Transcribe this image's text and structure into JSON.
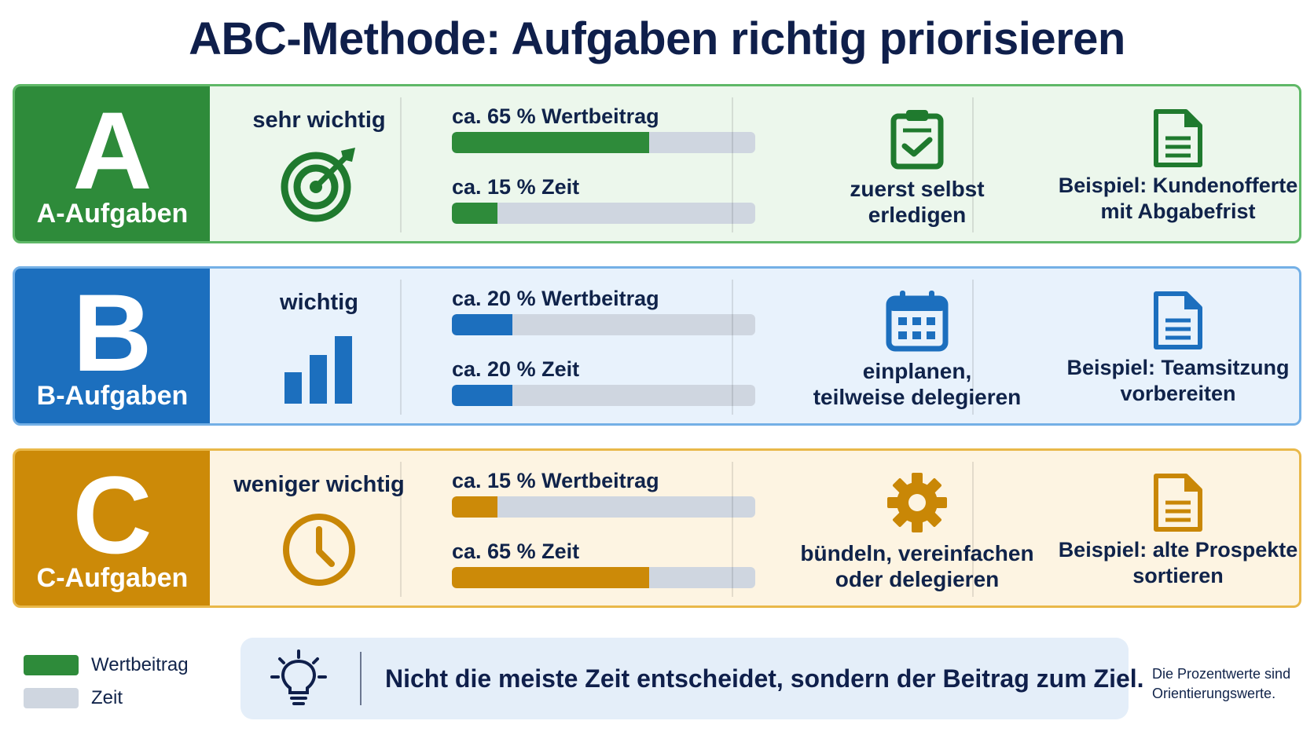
{
  "title": "ABC-Methode: Aufgaben richtig priorisieren",
  "colors": {
    "a_main": "#2e8b3a",
    "a_bg": "#ecf7ec",
    "a_border": "#5fb867",
    "b_main": "#1c6fbe",
    "b_bg": "#e8f2fc",
    "b_border": "#74b0e6",
    "c_main": "#cc8a08",
    "c_bg": "#fdf4e2",
    "c_border": "#e9b849",
    "track": "#cfd6e0",
    "text_dark": "#10234a"
  },
  "rows": [
    {
      "letter": "A",
      "label": "A-Aufgaben",
      "importance": "sehr wichtig",
      "importance_icon": "target-icon",
      "value_label": "ca. 65 % Wertbeitrag",
      "value_pct": 65,
      "time_label": "ca. 15 % Zeit",
      "time_pct": 15,
      "action_icon": "clipboard-check-icon",
      "action_line1": "zuerst selbst",
      "action_line2": "erledigen",
      "example_icon": "document-icon",
      "example_line1": "Beispiel: Kundenofferte",
      "example_line2": "mit Abgabefrist"
    },
    {
      "letter": "B",
      "label": "B-Aufgaben",
      "importance": "wichtig",
      "importance_icon": "bar-chart-icon",
      "value_label": "ca. 20 % Wertbeitrag",
      "value_pct": 20,
      "time_label": "ca. 20 % Zeit",
      "time_pct": 20,
      "action_icon": "calendar-icon",
      "action_line1": "einplanen,",
      "action_line2": "teilweise delegieren",
      "example_icon": "document-icon",
      "example_line1": "Beispiel: Teamsitzung",
      "example_line2": "vorbereiten"
    },
    {
      "letter": "C",
      "label": "C-Aufgaben",
      "importance": "weniger wichtig",
      "importance_icon": "clock-icon",
      "value_label": "ca. 15 % Wertbeitrag",
      "value_pct": 15,
      "time_label": "ca. 65 % Zeit",
      "time_pct": 65,
      "action_icon": "gear-icon",
      "action_line1": "bündeln, vereinfachen",
      "action_line2": "oder delegieren",
      "example_icon": "document-icon",
      "example_line1": "Beispiel: alte Prospekte",
      "example_line2": "sortieren"
    }
  ],
  "legend": {
    "value_label": "Wertbeitrag",
    "time_label": "Zeit"
  },
  "quote": {
    "icon": "lightbulb-icon",
    "text": "Nicht die meiste Zeit entscheidet, sondern der Beitrag zum Ziel."
  },
  "note": {
    "line1": "Die Prozentwerte sind",
    "line2": "Orientierungswerte."
  }
}
